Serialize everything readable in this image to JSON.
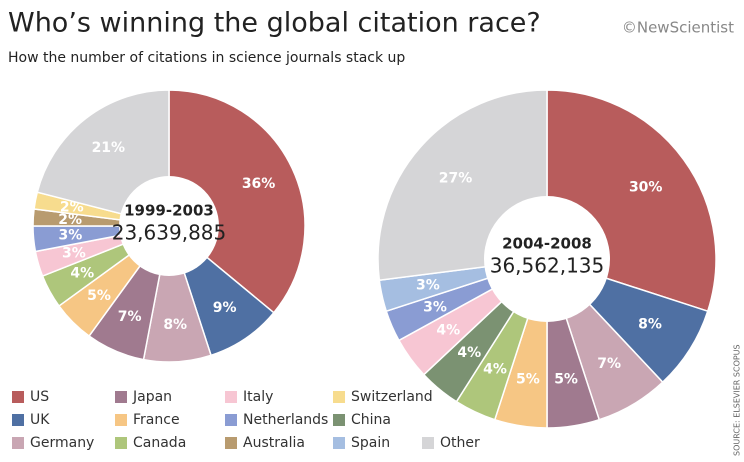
{
  "title": "Who’s winning the global citation race?",
  "subtitle": "How the number of citations in science journals stack up",
  "credit": "©NewScientist",
  "source": "SOURCE: ELSEVIER SCOPUS",
  "legend": [
    {
      "name": "US",
      "color": "#b85c5c"
    },
    {
      "name": "UK",
      "color": "#4f70a3"
    },
    {
      "name": "Germany",
      "color": "#c9a6b3"
    },
    {
      "name": "Japan",
      "color": "#a07a8f"
    },
    {
      "name": "France",
      "color": "#f6c684"
    },
    {
      "name": "Canada",
      "color": "#aec67b"
    },
    {
      "name": "Italy",
      "color": "#f7c6d3"
    },
    {
      "name": "Netherlands",
      "color": "#8a9cd3"
    },
    {
      "name": "Australia",
      "color": "#b89b6f"
    },
    {
      "name": "Switzerland",
      "color": "#f7dc8e"
    },
    {
      "name": "China",
      "color": "#7b9272"
    },
    {
      "name": "Spain",
      "color": "#a5bee1"
    },
    {
      "name": "Other",
      "color": "#d5d5d7"
    }
  ],
  "chart_data": [
    {
      "type": "pie",
      "center_label": "1999-2003",
      "total": {
        "value": 23639885,
        "label": "23,639,885"
      },
      "categories": [
        "US",
        "UK",
        "Germany",
        "Japan",
        "France",
        "Canada",
        "Italy",
        "Netherlands",
        "Australia",
        "Switzerland",
        "Other"
      ],
      "values": [
        36,
        9,
        8,
        7,
        5,
        4,
        3,
        3,
        2,
        2,
        21
      ],
      "value_labels": [
        "36%",
        "9%",
        "8%",
        "7%",
        "5%",
        "4%",
        "3%",
        "3%",
        "2%",
        "2%",
        "21%"
      ]
    },
    {
      "type": "pie",
      "center_label": "2004-2008",
      "total": {
        "value": 36562135,
        "label": "36,562,135"
      },
      "categories": [
        "US",
        "UK",
        "Germany",
        "Japan",
        "France",
        "Canada",
        "China",
        "Italy",
        "Netherlands",
        "Spain",
        "Other"
      ],
      "values": [
        30,
        8,
        7,
        5,
        5,
        4,
        4,
        4,
        3,
        3,
        27
      ],
      "value_labels": [
        "30%",
        "8%",
        "7%",
        "5%",
        "5%",
        "4%",
        "4%",
        "4%",
        "3%",
        "3%",
        "27%"
      ]
    }
  ]
}
